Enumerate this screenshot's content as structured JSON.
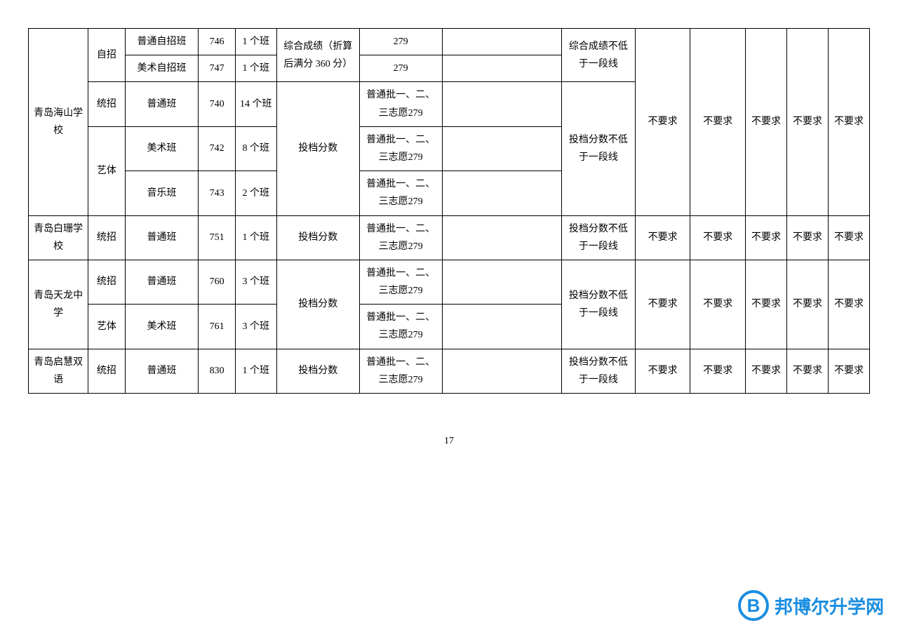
{
  "page_number": "17",
  "watermark": {
    "logo_letter": "B",
    "text": "邦博尔升学网",
    "color": "#1a8de0"
  },
  "table": {
    "border_color": "#000000",
    "font_size_pt": 10.5,
    "schools": [
      {
        "name": "青岛海山学校",
        "req10": "不要求",
        "req11": "不要求",
        "req12": "不要求",
        "req13": "不要求",
        "req14": "不要求",
        "groups": [
          {
            "cat": "自招",
            "score_type": "综合成绩（折算后满分 360 分）",
            "limit": "综合成绩不低于一段线",
            "rows": [
              {
                "class_name": "普通自招班",
                "code": "746",
                "num": "1 个班",
                "v7": "279",
                "v8": ""
              },
              {
                "class_name": "美术自招班",
                "code": "747",
                "num": "1 个班",
                "v7": "279",
                "v8": ""
              }
            ]
          },
          {
            "cat": "统招",
            "score_type_shared_below": true,
            "limit_shared_below": true,
            "rows": [
              {
                "class_name": "普通班",
                "code": "740",
                "num": "14 个班",
                "v7": "普通批一、二、三志愿279",
                "v8": ""
              }
            ]
          },
          {
            "cat": "艺体",
            "score_type": "投档分数",
            "limit": "投档分数不低于一段线",
            "rows": [
              {
                "class_name": "美术班",
                "code": "742",
                "num": "8 个班",
                "v7": "普通批一、二、三志愿279",
                "v8": ""
              },
              {
                "class_name": "音乐班",
                "code": "743",
                "num": "2 个班",
                "v7": "普通批一、二、三志愿279",
                "v8": ""
              }
            ]
          }
        ]
      },
      {
        "name": "青岛白珊学校",
        "req10": "不要求",
        "req11": "不要求",
        "req12": "不要求",
        "req13": "不要求",
        "req14": "不要求",
        "groups": [
          {
            "cat": "统招",
            "score_type": "投档分数",
            "limit": "投档分数不低于一段线",
            "rows": [
              {
                "class_name": "普通班",
                "code": "751",
                "num": "1 个班",
                "v7": "普通批一、二、三志愿279",
                "v8": ""
              }
            ]
          }
        ]
      },
      {
        "name": "青岛天龙中学",
        "req10": "不要求",
        "req11": "不要求",
        "req12": "不要求",
        "req13": "不要求",
        "req14": "不要求",
        "groups": [
          {
            "cat": "统招",
            "score_type_shared_below": true,
            "limit_shared_below": true,
            "rows": [
              {
                "class_name": "普通班",
                "code": "760",
                "num": "3 个班",
                "v7": "普通批一、二、三志愿279",
                "v8": ""
              }
            ]
          },
          {
            "cat": "艺体",
            "score_type": "投档分数",
            "limit": "投档分数不低于一段线",
            "rows": [
              {
                "class_name": "美术班",
                "code": "761",
                "num": "3 个班",
                "v7": "普通批一、二、三志愿279",
                "v8": ""
              }
            ]
          }
        ]
      },
      {
        "name": "青岛启慧双语",
        "req10": "不要求",
        "req11": "不要求",
        "req12": "不要求",
        "req13": "不要求",
        "req14": "不要求",
        "groups": [
          {
            "cat": "统招",
            "score_type": "投档分数",
            "limit": "投档分数不低于一段线",
            "rows": [
              {
                "class_name": "普通班",
                "code": "830",
                "num": "1 个班",
                "v7": "普通批一、二、三志愿279",
                "v8": ""
              }
            ]
          }
        ]
      }
    ]
  }
}
